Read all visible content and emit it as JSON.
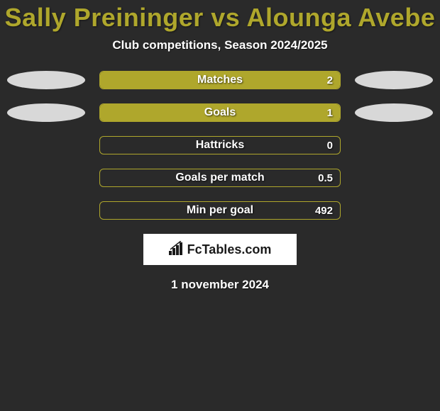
{
  "title": "Sally Preininger vs Alounga Avebe",
  "subtitle": "Club competitions, Season 2024/2025",
  "logo_text": "FcTables.com",
  "date_text": "1 november 2024",
  "colors": {
    "background": "#2a2a2a",
    "accent": "#afa72c",
    "ellipse": "#d8d8d8",
    "text": "#ffffff"
  },
  "bars": [
    {
      "label": "Matches",
      "value": "2",
      "fill_pct": 100,
      "left_ellipse": true,
      "right_ellipse": true
    },
    {
      "label": "Goals",
      "value": "1",
      "fill_pct": 100,
      "left_ellipse": true,
      "right_ellipse": true
    },
    {
      "label": "Hattricks",
      "value": "0",
      "fill_pct": 0,
      "left_ellipse": false,
      "right_ellipse": false
    },
    {
      "label": "Goals per match",
      "value": "0.5",
      "fill_pct": 0,
      "left_ellipse": false,
      "right_ellipse": false
    },
    {
      "label": "Min per goal",
      "value": "492",
      "fill_pct": 0,
      "left_ellipse": false,
      "right_ellipse": false
    }
  ]
}
